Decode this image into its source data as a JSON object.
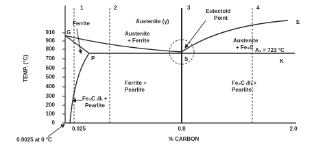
{
  "axes": {
    "y_title": "TEMP. (°C)",
    "x_title": "% CARBON",
    "y_ticks": [
      "910",
      "900",
      "800",
      "700",
      "600",
      "500",
      "400",
      "300",
      "200",
      "100",
      "0"
    ],
    "x_ticks": [
      "0.025",
      "0.8",
      "2.0"
    ],
    "x_note": "0.0025 at 0 °C"
  },
  "lines": [
    "1",
    "2",
    "3",
    "4"
  ],
  "points": {
    "g": "G",
    "p": "P",
    "s": "S",
    "e": "E",
    "k": "K"
  },
  "regions": {
    "ferrite": "Ferrite",
    "austenite": "Austenite (γ)",
    "austenite_ferrite": [
      "Austenite",
      "+ Ferrite"
    ],
    "eutectoid": [
      "Eutectoid",
      "Point"
    ],
    "austenite_fe3c": [
      "Austenite",
      "+ Fe₃C"
    ],
    "a1": "A₁ = 723 °C",
    "ferrite_pearlite": [
      "Ferrite +",
      "Pearlite"
    ],
    "fe3c_pearlite_right": [
      "Fe₃C ₍II₎ +",
      "Pearlite"
    ],
    "fe3c_pearlite_left": [
      "Fe₃C ₍II₎ +",
      "Pearlite"
    ]
  }
}
